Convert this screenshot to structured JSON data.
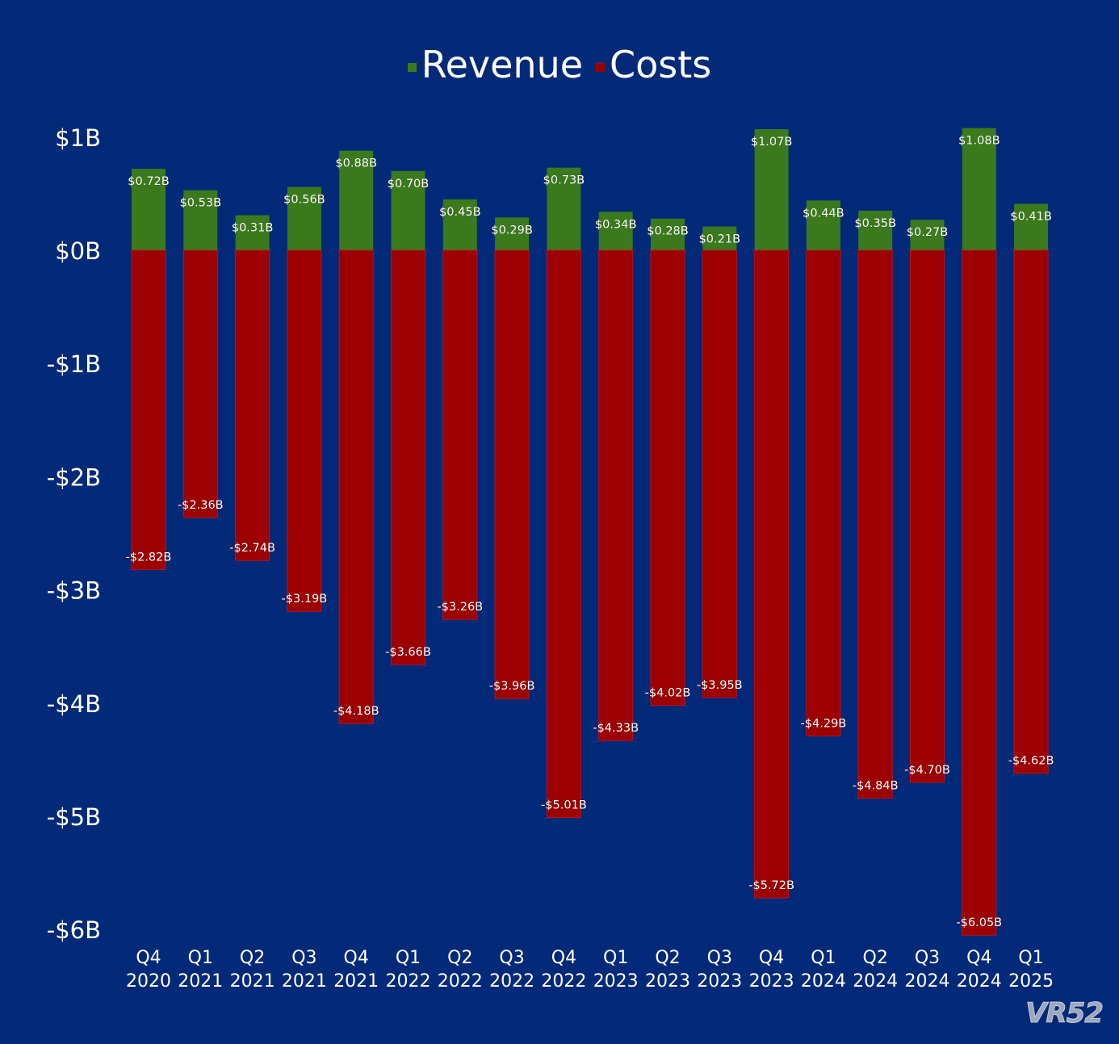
{
  "colors": {
    "background": "#032a78",
    "revenue": "#3a7a1d",
    "costs": "#9c0000",
    "text": "#ffffff"
  },
  "legend": [
    {
      "label": "Revenue",
      "color": "#3a7a1d"
    },
    {
      "label": "Costs",
      "color": "#9c0000"
    }
  ],
  "watermark": "VR52",
  "chart_data": {
    "type": "bar",
    "stacked": true,
    "legend_position": "top-center",
    "grid": false,
    "ylim": [
      -6,
      1
    ],
    "y_ticks": [
      {
        "value": 1,
        "label": "$1B"
      },
      {
        "value": 0,
        "label": "$0B"
      },
      {
        "value": -1,
        "label": "-$1B"
      },
      {
        "value": -2,
        "label": "-$2B"
      },
      {
        "value": -3,
        "label": "-$3B"
      },
      {
        "value": -4,
        "label": "-$4B"
      },
      {
        "value": -5,
        "label": "-$5B"
      },
      {
        "value": -6,
        "label": "-$6B"
      }
    ],
    "categories": [
      [
        "Q4",
        "2020"
      ],
      [
        "Q1",
        "2021"
      ],
      [
        "Q2",
        "2021"
      ],
      [
        "Q3",
        "2021"
      ],
      [
        "Q4",
        "2021"
      ],
      [
        "Q1",
        "2022"
      ],
      [
        "Q2",
        "2022"
      ],
      [
        "Q3",
        "2022"
      ],
      [
        "Q4",
        "2022"
      ],
      [
        "Q1",
        "2023"
      ],
      [
        "Q2",
        "2023"
      ],
      [
        "Q3",
        "2023"
      ],
      [
        "Q4",
        "2023"
      ],
      [
        "Q1",
        "2024"
      ],
      [
        "Q2",
        "2024"
      ],
      [
        "Q3",
        "2024"
      ],
      [
        "Q4",
        "2024"
      ],
      [
        "Q1",
        "2025"
      ]
    ],
    "series": [
      {
        "name": "Revenue",
        "color": "#3a7a1d",
        "values": [
          0.72,
          0.53,
          0.31,
          0.56,
          0.88,
          0.7,
          0.45,
          0.29,
          0.73,
          0.34,
          0.28,
          0.21,
          1.07,
          0.44,
          0.35,
          0.27,
          1.08,
          0.41
        ],
        "labels": [
          "$0.72B",
          "$0.53B",
          "$0.31B",
          "$0.56B",
          "$0.88B",
          "$0.70B",
          "$0.45B",
          "$0.29B",
          "$0.73B",
          "$0.34B",
          "$0.28B",
          "$0.21B",
          "$1.07B",
          "$0.44B",
          "$0.35B",
          "$0.27B",
          "$1.08B",
          "$0.41B"
        ]
      },
      {
        "name": "Costs",
        "color": "#9c0000",
        "values": [
          -2.82,
          -2.36,
          -2.74,
          -3.19,
          -4.18,
          -3.66,
          -3.26,
          -3.96,
          -5.01,
          -4.33,
          -4.02,
          -3.95,
          -5.72,
          -4.29,
          -4.84,
          -4.7,
          -6.05,
          -4.62
        ],
        "labels": [
          "-$2.82B",
          "-$2.36B",
          "-$2.74B",
          "-$3.19B",
          "-$4.18B",
          "-$3.66B",
          "-$3.26B",
          "-$3.96B",
          "-$5.01B",
          "-$4.33B",
          "-$4.02B",
          "-$3.95B",
          "-$5.72B",
          "-$4.29B",
          "-$4.84B",
          "-$4.70B",
          "-$6.05B",
          "-$4.62B"
        ]
      }
    ]
  }
}
